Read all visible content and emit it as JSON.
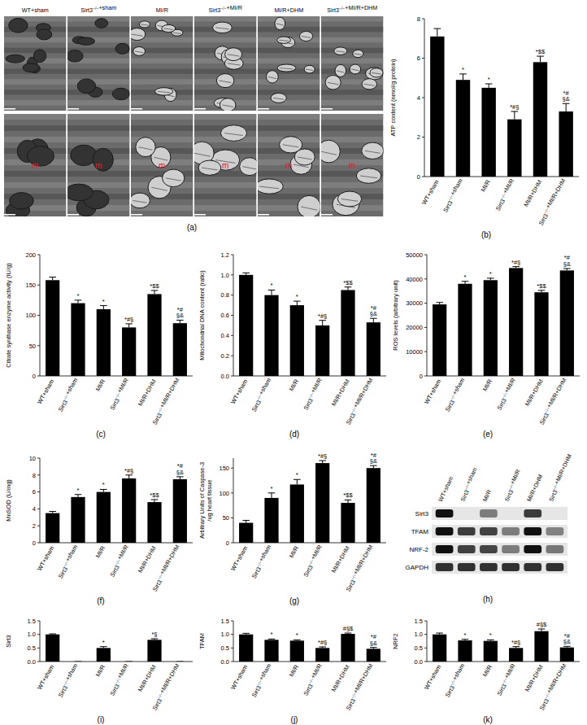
{
  "micrographs": {
    "panel": "(a)",
    "columns": [
      "WT+sham",
      "Sirt3−/−+sham",
      "MI/R",
      "Sirt3−/−+MI/R",
      "MI/R+DHM",
      "Sirt3−/−+MI/R+DHM"
    ],
    "marks": [
      "m",
      "m",
      "m",
      "m",
      "m",
      "m"
    ]
  },
  "blot": {
    "panel": "(h)",
    "columns": [
      "WT+sham",
      "Sirt3−/−+sham",
      "MI/R",
      "Sirt3−/−+MI/R",
      "MI/R+DHM",
      "Sirt3−/−+MI/R+DHM"
    ],
    "rows": [
      "Sirt3",
      "TFAM",
      "NRF-2",
      "GAPDH"
    ]
  },
  "chart_data": [
    {
      "type": "bar",
      "panel": "(b)",
      "ylabel": "ATP content (nmol/g protein)",
      "categories": [
        "WT+sham",
        "Sirt3−/−+sham",
        "MI/R",
        "Sirt3−/−+MI/R",
        "MI/R+DHM",
        "Sirt3−/−+MI/R+DHM"
      ],
      "values": [
        7.1,
        4.9,
        4.5,
        2.9,
        5.8,
        3.3
      ],
      "errors": [
        0.4,
        0.3,
        0.2,
        0.4,
        0.3,
        0.4
      ],
      "annotations": [
        null,
        "*",
        "*",
        "*#§",
        "*$$",
        "*#\n§&"
      ],
      "color": "#000000",
      "ylim": [
        0,
        8
      ],
      "yticks": [
        0,
        2,
        4,
        6,
        8
      ],
      "grid": false
    },
    {
      "type": "bar",
      "panel": "(c)",
      "ylabel": "Citrate synthase enzyme activity (IU/g)",
      "categories": [
        "WT+sham",
        "Sirt3−/−+sham",
        "MI/R",
        "Sirt3−/−+MI/R",
        "MI/R+DHM",
        "Sirt3−/−+MI/R+DHM"
      ],
      "values": [
        158,
        120,
        110,
        80,
        135,
        87
      ],
      "errors": [
        5,
        5,
        6,
        6,
        6,
        5
      ],
      "annotations": [
        null,
        "*",
        "*",
        "*#§",
        "*$$",
        "*#\n§&"
      ],
      "color": "#000000",
      "ylim": [
        0,
        200
      ],
      "yticks": [
        0,
        50,
        100,
        150,
        200
      ],
      "grid": false
    },
    {
      "type": "bar",
      "panel": "(d)",
      "ylabel": "Mitochondrial DNA content (ratio)",
      "categories": [
        "WT+sham",
        "Sirt3−/−+sham",
        "MI/R",
        "Sirt3−/−+MI/R",
        "MI/R+DHM",
        "Sirt3−/−+MI/R+DHM"
      ],
      "values": [
        1.0,
        0.8,
        0.7,
        0.5,
        0.85,
        0.53
      ],
      "errors": [
        0.02,
        0.05,
        0.04,
        0.05,
        0.03,
        0.04
      ],
      "annotations": [
        null,
        "*",
        "*",
        "*#§",
        "*$$",
        "*#\n§&"
      ],
      "color": "#000000",
      "ylim": [
        0,
        1.2
      ],
      "yticks": [
        {
          "value": 0,
          "label": "0.0"
        },
        0.2,
        0.4,
        0.6,
        0.8,
        {
          "value": 1,
          "label": "1.0"
        },
        1.2
      ],
      "grid": false
    },
    {
      "type": "bar",
      "panel": "(e)",
      "ylabel": "ROS levels (arbitrary unit)",
      "categories": [
        "WT+sham",
        "Sirt3−/−+sham",
        "MI/R",
        "Sirt3−/−+MI/R",
        "MI/R+DHM",
        "Sirt3−/−+MI/R+DHM"
      ],
      "values": [
        29500,
        38000,
        39500,
        44500,
        34500,
        43500
      ],
      "errors": [
        800,
        1000,
        800,
        600,
        800,
        800
      ],
      "annotations": [
        null,
        "*",
        "*",
        "*#§",
        "*$$",
        "*#\n§&"
      ],
      "color": "#000000",
      "ylim": [
        0,
        50000
      ],
      "yticks": [
        0,
        10000,
        20000,
        30000,
        40000,
        50000
      ],
      "grid": false
    },
    {
      "type": "bar",
      "panel": "(f)",
      "ylabel": "MnSOD (U/mg)",
      "categories": [
        "WT+sham",
        "Sirt3−/−+sham",
        "MI/R",
        "Sirt3−/−+MI/R",
        "MI/R+DHM",
        "Sirt3−/−+MI/R+DHM"
      ],
      "values": [
        3.5,
        5.4,
        6.0,
        7.6,
        4.8,
        7.5
      ],
      "errors": [
        0.2,
        0.3,
        0.3,
        0.4,
        0.3,
        0.3
      ],
      "annotations": [
        null,
        "*",
        "*",
        "*#§",
        "*$$",
        "*#\n§&"
      ],
      "color": "#000000",
      "ylim": [
        0,
        10
      ],
      "yticks": [
        0,
        2,
        4,
        6,
        8,
        10
      ],
      "grid": false
    },
    {
      "type": "bar",
      "panel": "(g)",
      "ylabel": "Arbitrary Units of Caspase-3\n/ug heart tissue",
      "categories": [
        "WT+sham",
        "Sirt3−/−+sham",
        "MI/R",
        "Sirt3−/−+MI/R",
        "MI/R+DHM",
        "Sirt3−/−+MI/R+DHM"
      ],
      "values": [
        40,
        90,
        117,
        160,
        80,
        150
      ],
      "errors": [
        5,
        10,
        10,
        5,
        6,
        5
      ],
      "annotations": [
        null,
        "*",
        "*",
        "*#§",
        "*$$",
        "*#\n§&"
      ],
      "color": "#000000",
      "ylim": [
        0,
        170
      ],
      "yticks": [
        0,
        50,
        100,
        150
      ],
      "grid": false
    },
    {
      "type": "bar",
      "panel": "(i)",
      "ylabel": "Sirt3",
      "categories": [
        "WT+sham",
        "Sirt3−/−+sham",
        "MI/R",
        "Sirt3−/−+MI/R",
        "MI/R+DHM",
        "Sirt3−/−+MI/R+DHM"
      ],
      "values": [
        1.0,
        0,
        0.5,
        0,
        0.8,
        0
      ],
      "errors": [
        0.02,
        0,
        0.05,
        0,
        0.04,
        0
      ],
      "annotations": [
        null,
        null,
        "*",
        null,
        "*§",
        null
      ],
      "color": "#000000",
      "ylim": [
        0,
        1.5
      ],
      "yticks": [
        {
          "value": 0,
          "label": "0.0"
        },
        0.5,
        {
          "value": 1,
          "label": "1.0"
        },
        1.5
      ],
      "grid": false
    },
    {
      "type": "bar",
      "panel": "(j)",
      "ylabel": "TFAM",
      "categories": [
        "WT+sham",
        "Sirt3−/−+sham",
        "MI/R",
        "Sirt3−/−+MI/R",
        "MI/R+DHM",
        "Sirt3−/−+MI/R+DHM"
      ],
      "values": [
        1.0,
        0.8,
        0.77,
        0.5,
        1.02,
        0.47
      ],
      "errors": [
        0.04,
        0.03,
        0.03,
        0.04,
        0.03,
        0.05
      ],
      "annotations": [
        null,
        "*",
        "*",
        "*#§",
        "#§$",
        "*#\n§&"
      ],
      "color": "#000000",
      "ylim": [
        0,
        1.5
      ],
      "yticks": [
        {
          "value": 0,
          "label": "0.0"
        },
        0.5,
        {
          "value": 1,
          "label": "1.0"
        },
        1.5
      ],
      "grid": false
    },
    {
      "type": "bar",
      "panel": "(k)",
      "ylabel": "NRF2",
      "categories": [
        "WT+sham",
        "Sirt3−/−+sham",
        "MI/R",
        "Sirt3−/−+MI/R",
        "MI/R+DHM",
        "Sirt3−/−+MI/R+DHM"
      ],
      "values": [
        1.0,
        0.78,
        0.76,
        0.5,
        1.12,
        0.52
      ],
      "errors": [
        0.05,
        0.04,
        0.04,
        0.05,
        0.08,
        0.04
      ],
      "annotations": [
        null,
        "*",
        "*",
        "*#§",
        "#§$",
        "*#\n§&"
      ],
      "color": "#000000",
      "ylim": [
        0,
        1.5
      ],
      "yticks": [
        {
          "value": 0,
          "label": "0.0"
        },
        0.5,
        {
          "value": 1,
          "label": "1.0"
        },
        1.5
      ],
      "grid": false
    }
  ]
}
